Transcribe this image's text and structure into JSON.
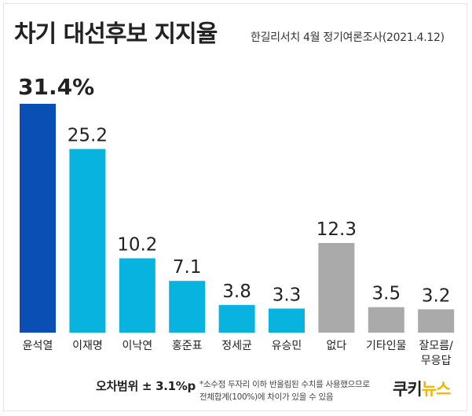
{
  "title": "차기 대선후보 지지율",
  "subtitle": "한길리서치 4월 정기여론조사(2021.4.12)",
  "colors": {
    "highlight": "#0a4fb3",
    "candidate": "#08b3e0",
    "none": "#aaaaaa",
    "other": "#aaaaaa",
    "logo_accent": "#f2b400"
  },
  "chart_data": {
    "type": "bar",
    "categories": [
      "윤석열",
      "이재명",
      "이낙연",
      "홍준표",
      "정세균",
      "유승민",
      "없다",
      "기타인물",
      "잘모름/\n무응답"
    ],
    "values": [
      31.4,
      25.2,
      10.2,
      7.1,
      3.8,
      3.3,
      12.3,
      3.5,
      3.2
    ],
    "value_labels": [
      "31.4%",
      "25.2",
      "10.2",
      "7.1",
      "3.8",
      "3.3",
      "12.3",
      "3.5",
      "3.2"
    ],
    "bar_colors": [
      "#0a4fb3",
      "#08b3e0",
      "#08b3e0",
      "#08b3e0",
      "#08b3e0",
      "#08b3e0",
      "#aaaaaa",
      "#aaaaaa",
      "#aaaaaa"
    ],
    "title": "차기 대선후보 지지율",
    "xlabel": "",
    "ylabel": "",
    "ylim": [
      0,
      31.4
    ],
    "grid": false,
    "legend": "none"
  },
  "footer": {
    "margin_of_error": "오차범위 ± 3.1%p",
    "note_line1": "*소수점 두자리 이하 반올림된 수치를 사용했으므로",
    "note_line2": "전체합계(100%)에 차이가 있을 수 있음",
    "logo_part1": "쿠키",
    "logo_part2": "뉴스"
  }
}
